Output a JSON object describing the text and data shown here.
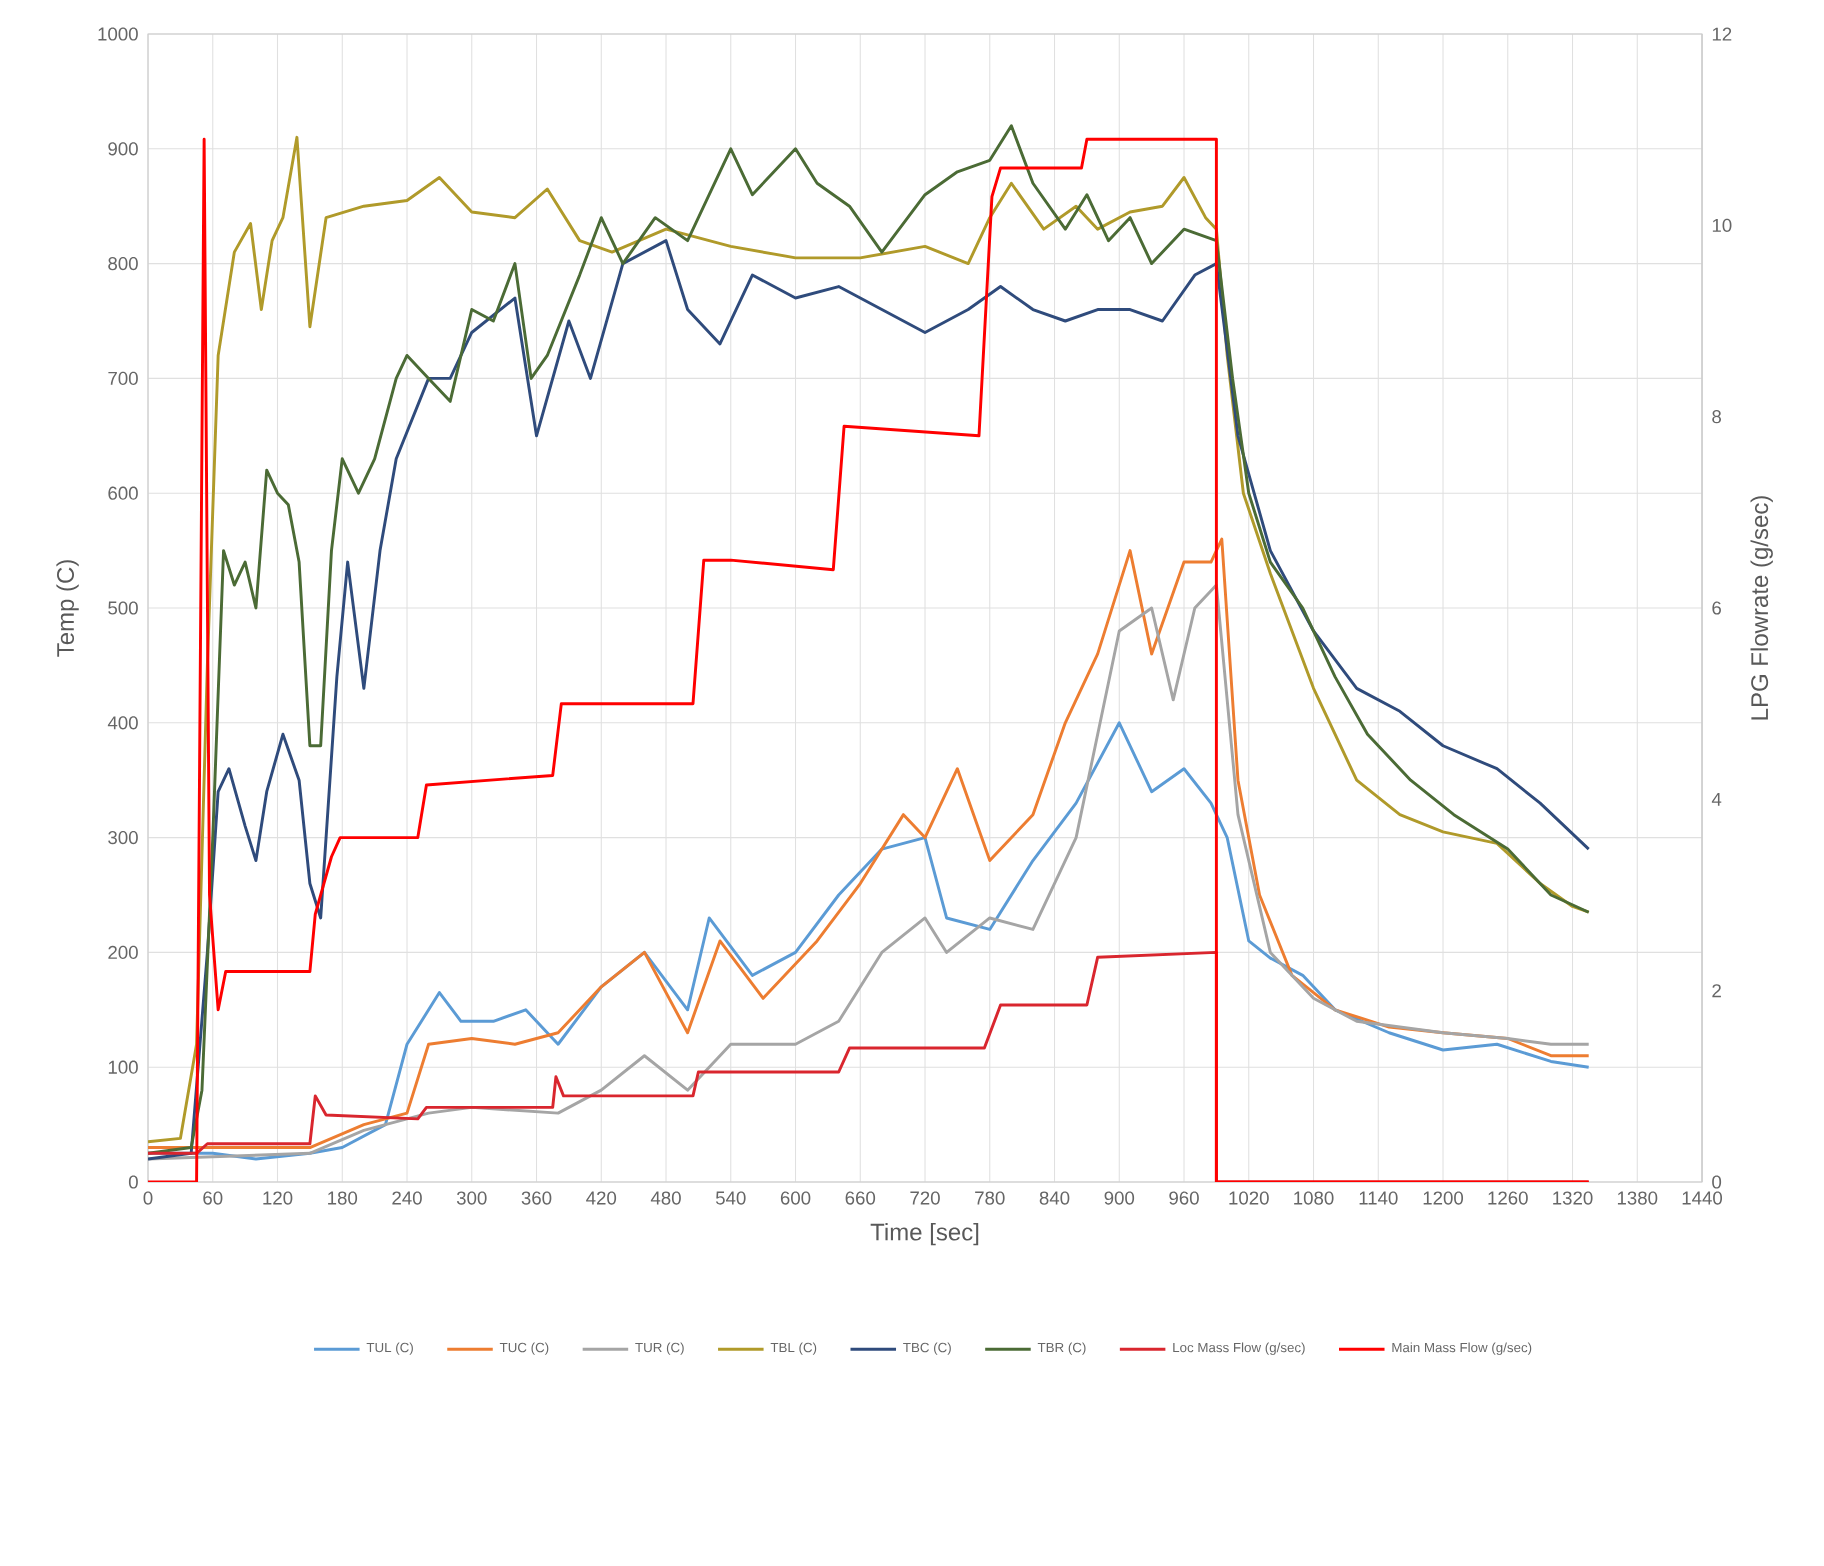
{
  "chart_data": {
    "type": "line",
    "xlabel": "Time [sec]",
    "ylabel": "Temp (C)",
    "y2label": "LPG Flowrate (g/sec)",
    "xlim": [
      0,
      1440
    ],
    "xticks": [
      0,
      60,
      120,
      180,
      240,
      300,
      360,
      420,
      480,
      540,
      600,
      660,
      720,
      780,
      840,
      900,
      960,
      1020,
      1080,
      1140,
      1200,
      1260,
      1320,
      1380,
      1440
    ],
    "ylim": [
      0,
      1000
    ],
    "yticks": [
      0,
      100,
      200,
      300,
      400,
      500,
      600,
      700,
      800,
      900,
      1000
    ],
    "y2lim": [
      0,
      12
    ],
    "y2ticks": [
      0,
      2,
      4,
      6,
      8,
      10,
      12
    ],
    "grid": true,
    "legend": "bottom",
    "marker": "none",
    "line_style": "solid",
    "series": [
      {
        "name": "TUL (C)",
        "color": "#5b9bd5",
        "x": [
          0,
          60,
          100,
          150,
          180,
          220,
          240,
          270,
          290,
          320,
          350,
          380,
          420,
          460,
          500,
          520,
          560,
          600,
          640,
          680,
          720,
          740,
          780,
          820,
          860,
          900,
          930,
          960,
          985,
          1000,
          1020,
          1040,
          1070,
          1100,
          1150,
          1200,
          1250,
          1300,
          1335
        ],
        "values": [
          25,
          25,
          20,
          25,
          30,
          50,
          120,
          165,
          140,
          140,
          150,
          120,
          170,
          200,
          150,
          230,
          180,
          200,
          250,
          290,
          300,
          230,
          220,
          280,
          330,
          400,
          340,
          360,
          330,
          300,
          210,
          195,
          180,
          150,
          130,
          115,
          120,
          105,
          100
        ]
      },
      {
        "name": "TUC (C)",
        "color": "#ed7d31",
        "x": [
          0,
          150,
          200,
          240,
          260,
          300,
          340,
          380,
          420,
          460,
          500,
          530,
          570,
          620,
          660,
          700,
          720,
          750,
          780,
          820,
          850,
          880,
          910,
          930,
          960,
          985,
          995,
          1010,
          1030,
          1060,
          1100,
          1150,
          1200,
          1260,
          1300,
          1335
        ],
        "values": [
          30,
          30,
          50,
          60,
          120,
          125,
          120,
          130,
          170,
          200,
          130,
          210,
          160,
          210,
          260,
          320,
          300,
          360,
          280,
          320,
          400,
          460,
          550,
          460,
          540,
          540,
          560,
          350,
          250,
          180,
          150,
          135,
          130,
          125,
          110,
          110
        ]
      },
      {
        "name": "TUR (C)",
        "color": "#a5a5a5",
        "x": [
          0,
          150,
          200,
          260,
          300,
          380,
          420,
          460,
          500,
          540,
          600,
          640,
          680,
          720,
          740,
          780,
          820,
          860,
          900,
          930,
          950,
          970,
          990,
          1010,
          1040,
          1080,
          1120,
          1200,
          1260,
          1300,
          1335
        ],
        "values": [
          20,
          25,
          45,
          60,
          65,
          60,
          80,
          110,
          80,
          120,
          120,
          140,
          200,
          230,
          200,
          230,
          220,
          300,
          480,
          500,
          420,
          500,
          520,
          320,
          200,
          160,
          140,
          130,
          125,
          120,
          120
        ]
      },
      {
        "name": "TBL (C)",
        "color": "#b09a2a",
        "x": [
          0,
          30,
          45,
          55,
          65,
          80,
          95,
          105,
          115,
          125,
          138,
          150,
          165,
          200,
          240,
          270,
          300,
          340,
          370,
          400,
          430,
          480,
          540,
          600,
          660,
          720,
          760,
          780,
          800,
          830,
          860,
          880,
          910,
          940,
          960,
          980,
          990,
          1000,
          1015,
          1040,
          1080,
          1120,
          1160,
          1200,
          1250,
          1290,
          1320,
          1335
        ],
        "values": [
          35,
          38,
          120,
          450,
          720,
          810,
          835,
          760,
          820,
          840,
          910,
          745,
          840,
          850,
          855,
          875,
          845,
          840,
          865,
          820,
          810,
          830,
          815,
          805,
          805,
          815,
          800,
          840,
          870,
          830,
          850,
          830,
          845,
          850,
          875,
          840,
          830,
          720,
          600,
          530,
          430,
          350,
          320,
          305,
          295,
          260,
          240,
          235
        ]
      },
      {
        "name": "TBC (C)",
        "color": "#2f4b7c",
        "x": [
          0,
          40,
          55,
          65,
          75,
          90,
          100,
          110,
          125,
          140,
          150,
          160,
          175,
          185,
          200,
          215,
          230,
          260,
          280,
          300,
          340,
          360,
          390,
          410,
          440,
          480,
          500,
          530,
          560,
          600,
          640,
          680,
          720,
          760,
          790,
          820,
          850,
          880,
          910,
          940,
          970,
          990,
          1010,
          1040,
          1080,
          1120,
          1160,
          1200,
          1250,
          1290,
          1335
        ],
        "values": [
          20,
          25,
          200,
          340,
          360,
          310,
          280,
          340,
          390,
          350,
          260,
          230,
          440,
          540,
          430,
          550,
          630,
          700,
          700,
          740,
          770,
          650,
          750,
          700,
          800,
          820,
          760,
          730,
          790,
          770,
          780,
          760,
          740,
          760,
          780,
          760,
          750,
          760,
          760,
          750,
          790,
          800,
          650,
          550,
          480,
          430,
          410,
          380,
          360,
          330,
          290
        ]
      },
      {
        "name": "TBR (C)",
        "color": "#4b6b35",
        "x": [
          0,
          40,
          50,
          60,
          70,
          80,
          90,
          100,
          110,
          120,
          130,
          140,
          150,
          160,
          170,
          180,
          195,
          210,
          230,
          240,
          260,
          280,
          300,
          320,
          340,
          355,
          370,
          400,
          420,
          440,
          470,
          500,
          520,
          540,
          560,
          600,
          620,
          650,
          680,
          720,
          750,
          780,
          800,
          820,
          850,
          870,
          890,
          910,
          930,
          960,
          990,
          1005,
          1020,
          1040,
          1070,
          1100,
          1130,
          1170,
          1210,
          1260,
          1300,
          1335
        ],
        "values": [
          25,
          30,
          80,
          300,
          550,
          520,
          540,
          500,
          620,
          600,
          590,
          540,
          380,
          380,
          550,
          630,
          600,
          630,
          700,
          720,
          700,
          680,
          760,
          750,
          800,
          700,
          720,
          790,
          840,
          800,
          840,
          820,
          860,
          900,
          860,
          900,
          870,
          850,
          810,
          860,
          880,
          890,
          920,
          870,
          830,
          860,
          820,
          840,
          800,
          830,
          820,
          700,
          600,
          540,
          500,
          440,
          390,
          350,
          320,
          290,
          250,
          235
        ]
      },
      {
        "name": "Loc Mass Flow (g/sec)",
        "color": "#d9262e",
        "axis": "y2",
        "x": [
          0,
          45,
          55,
          150,
          155,
          165,
          250,
          258,
          375,
          378,
          385,
          505,
          510,
          640,
          650,
          775,
          790,
          870,
          880,
          990,
          990,
          1335
        ],
        "values": [
          0.3,
          0.3,
          0.4,
          0.4,
          0.9,
          0.7,
          0.66,
          0.78,
          0.78,
          1.1,
          0.9,
          0.9,
          1.15,
          1.15,
          1.4,
          1.4,
          1.85,
          1.85,
          2.35,
          2.4,
          0,
          0
        ]
      },
      {
        "name": "Main Mass Flow (g/sec)",
        "color": "#ff0000",
        "axis": "y2",
        "x": [
          0,
          45,
          52,
          57,
          65,
          72,
          150,
          155,
          170,
          178,
          250,
          258,
          375,
          383,
          505,
          515,
          540,
          635,
          645,
          770,
          782,
          790,
          865,
          870,
          990,
          990,
          1335
        ],
        "values": [
          0,
          0,
          10.9,
          3.0,
          1.8,
          2.2,
          2.2,
          2.8,
          3.4,
          3.6,
          3.6,
          4.15,
          4.25,
          5.0,
          5.0,
          6.5,
          6.5,
          6.4,
          7.9,
          7.8,
          10.3,
          10.6,
          10.6,
          10.9,
          10.9,
          0,
          0
        ]
      }
    ]
  }
}
